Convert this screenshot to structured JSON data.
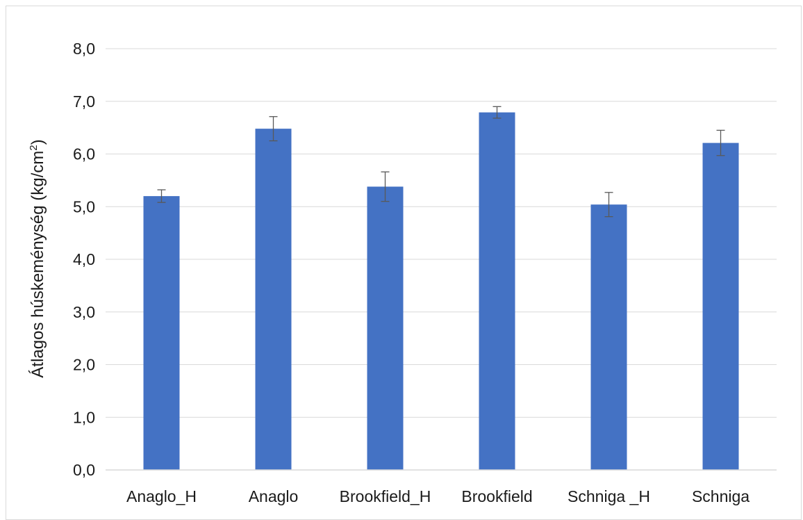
{
  "chart_data": {
    "type": "bar",
    "categories": [
      "Anaglo_H",
      "Anaglo",
      "Brookfield_H",
      "Brookfield",
      "Schniga _H",
      "Schniga"
    ],
    "values": [
      5.2,
      6.48,
      5.38,
      6.79,
      5.04,
      6.21
    ],
    "errors": [
      0.12,
      0.23,
      0.28,
      0.11,
      0.23,
      0.24
    ],
    "ylim": [
      0,
      8
    ],
    "yticks": [
      "0,0",
      "1,0",
      "2,0",
      "3,0",
      "4,0",
      "5,0",
      "6,0",
      "7,0",
      "8,0"
    ],
    "ylabel": "Átlagos húskeménység (kg/cm",
    "ylabel_sup": "2",
    "ylabel_close": ")",
    "xlabel": "",
    "title": "",
    "grid": true,
    "bar_color": "#4472c4",
    "error_bar_color": "#595959"
  }
}
